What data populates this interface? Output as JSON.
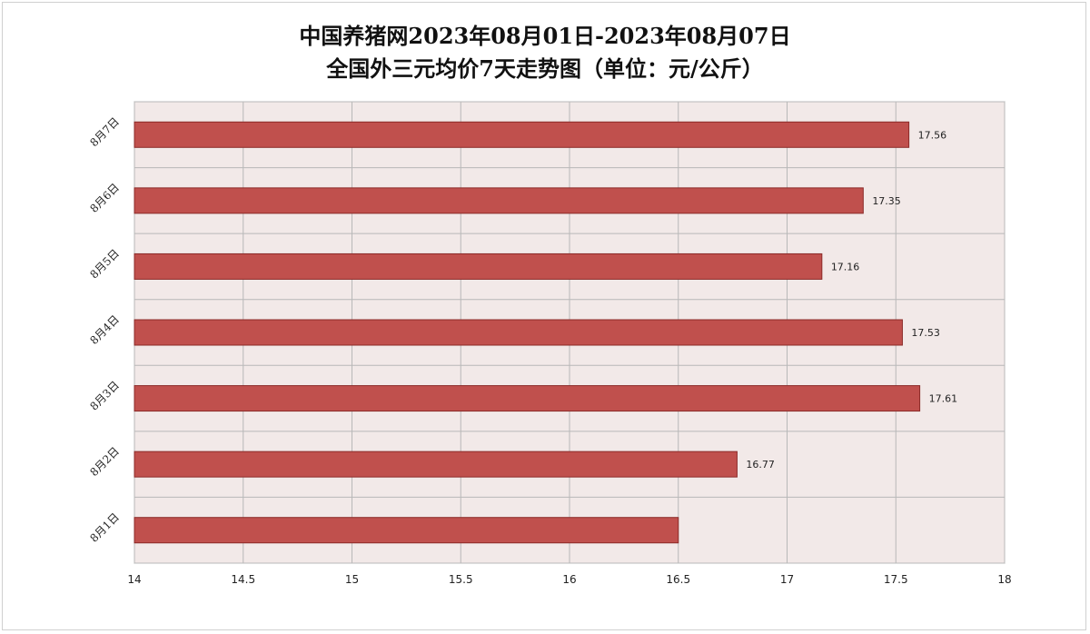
{
  "chart_data": {
    "type": "bar",
    "orientation": "horizontal",
    "title": "中国养猪网2023年08月01日-2023年08月07日",
    "subtitle": "全国外三元均价7天走势图（单位：元/公斤）",
    "categories": [
      "8月7日",
      "8月6日",
      "8月5日",
      "8月4日",
      "8月3日",
      "8月2日",
      "8月1日"
    ],
    "values": [
      17.56,
      17.35,
      17.16,
      17.53,
      17.61,
      16.77,
      16.5
    ],
    "data_labels": [
      "17.56",
      "17.35",
      "17.16",
      "17.53",
      "17.61",
      "16.77",
      ""
    ],
    "xlim": [
      14,
      18
    ],
    "x_ticks": [
      "14",
      "14.5",
      "15",
      "15.5",
      "16",
      "16.5",
      "17",
      "17.5",
      "18"
    ],
    "grid": true,
    "legend": "none",
    "colors": {
      "bar": "#c0504d",
      "bar_edge": "#8b2a28",
      "plot_bg": "#f2e9e8",
      "grid": "#b8b8b8"
    }
  }
}
